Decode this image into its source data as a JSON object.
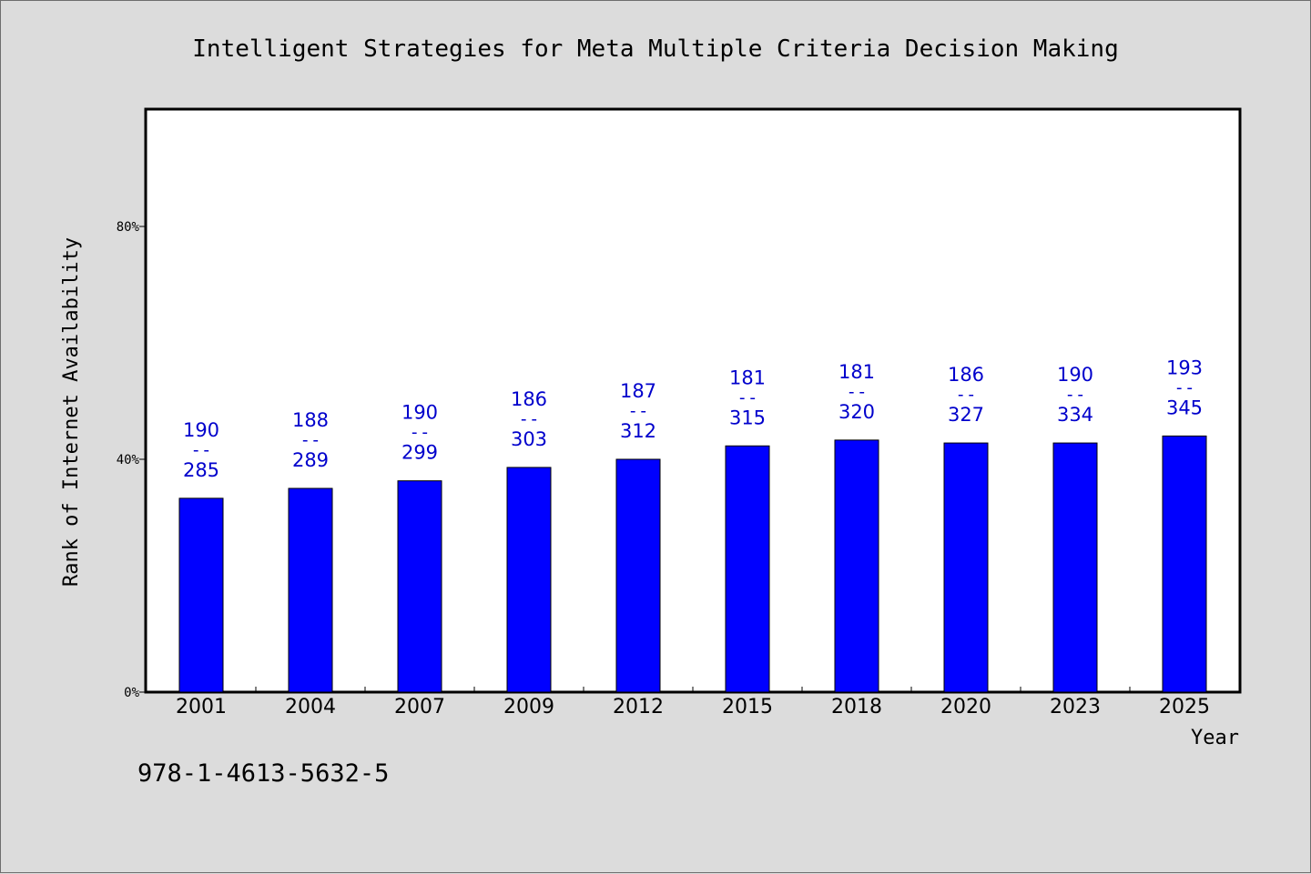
{
  "footer_text": "978-1-4613-5632-5",
  "colors": {
    "bar": "#0000ff",
    "label": "#0000cc",
    "background": "#dcdcdc",
    "plot_bg": "#ffffff",
    "axis": "#000000"
  },
  "chart_data": {
    "type": "bar",
    "title": "Intelligent Strategies for Meta Multiple Criteria Decision Making",
    "xlabel": "Year",
    "ylabel": "Rank of Internet Availability",
    "ylim": [
      0,
      100
    ],
    "yticks": [
      0,
      40,
      80
    ],
    "ytick_labels": [
      "0%",
      "40%",
      "80%"
    ],
    "grid": false,
    "categories": [
      "2001",
      "2004",
      "2007",
      "2009",
      "2012",
      "2015",
      "2018",
      "2020",
      "2023",
      "2025"
    ],
    "values": [
      33.3,
      35.0,
      36.3,
      38.6,
      40.0,
      42.3,
      43.3,
      42.8,
      42.8,
      44.0
    ],
    "data_labels": [
      {
        "top": "190",
        "sep": "--",
        "bottom": "285"
      },
      {
        "top": "188",
        "sep": "--",
        "bottom": "289"
      },
      {
        "top": "190",
        "sep": "--",
        "bottom": "299"
      },
      {
        "top": "186",
        "sep": "--",
        "bottom": "303"
      },
      {
        "top": "187",
        "sep": "--",
        "bottom": "312"
      },
      {
        "top": "181",
        "sep": "--",
        "bottom": "315"
      },
      {
        "top": "181",
        "sep": "--",
        "bottom": "320"
      },
      {
        "top": "186",
        "sep": "--",
        "bottom": "327"
      },
      {
        "top": "190",
        "sep": "--",
        "bottom": "334"
      },
      {
        "top": "193",
        "sep": "--",
        "bottom": "345"
      }
    ]
  }
}
